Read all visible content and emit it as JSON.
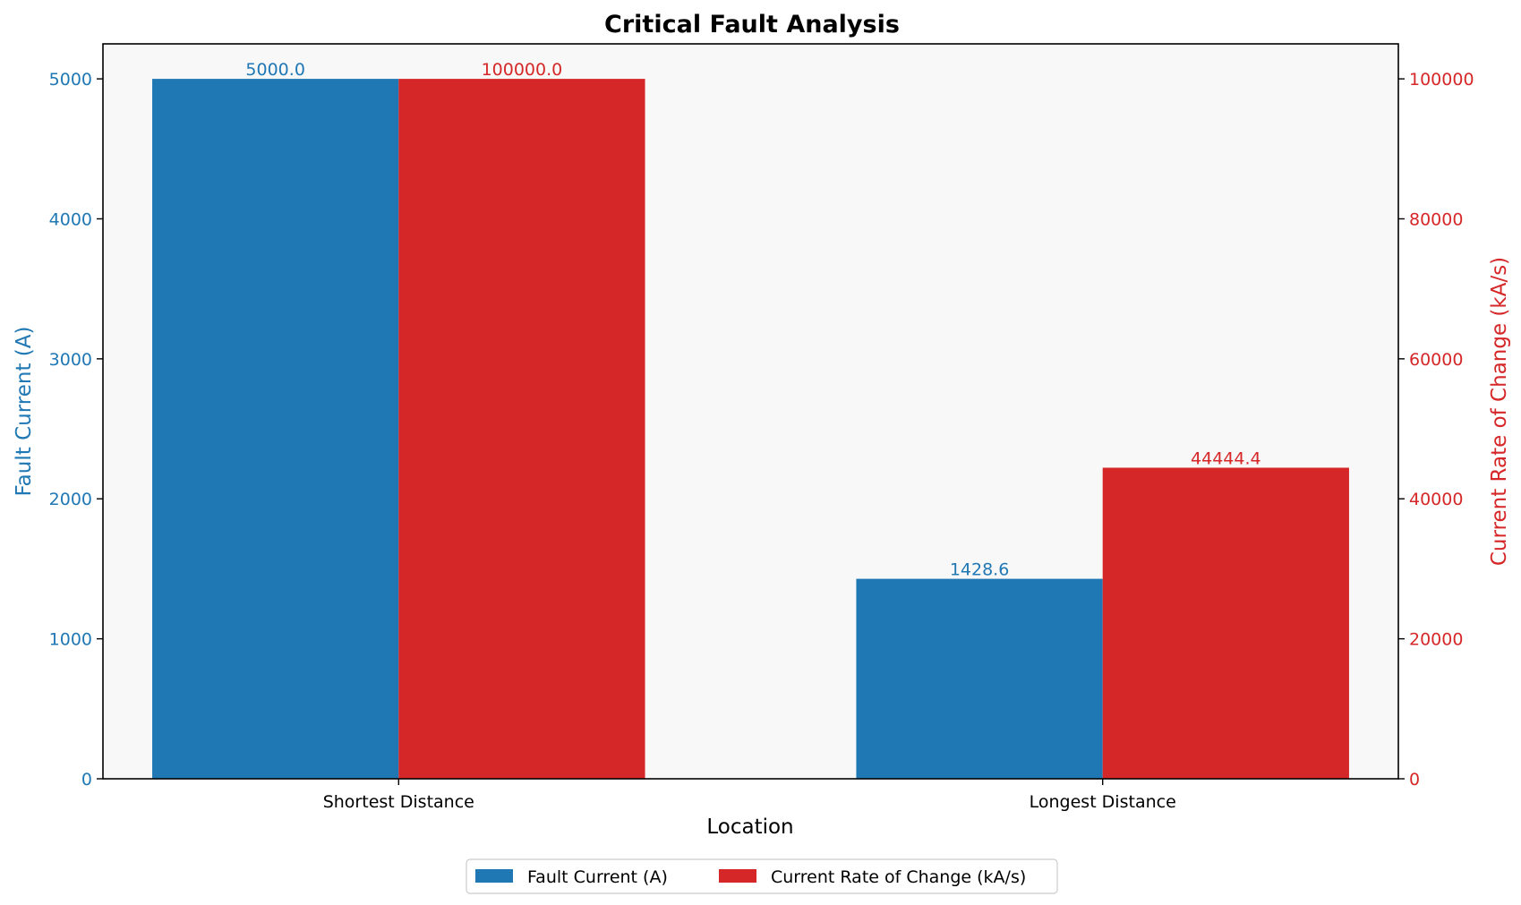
{
  "chart_data": {
    "type": "bar",
    "title": "Critical Fault Analysis",
    "xlabel": "Location",
    "categories": [
      "Shortest Distance",
      "Longest Distance"
    ],
    "series": [
      {
        "name": "Fault Current (A)",
        "axis": "left",
        "color": "#1f77b4",
        "values": [
          5000.0,
          1428.6
        ],
        "value_labels": [
          "5000.0",
          "1428.6"
        ]
      },
      {
        "name": "Current Rate of Change (kA/s)",
        "axis": "right",
        "color": "#d62728",
        "values": [
          100000.0,
          44444.4
        ],
        "value_labels": [
          "100000.0",
          "44444.4"
        ]
      }
    ],
    "y_left": {
      "label": "Fault Current (A)",
      "color": "#1f77b4",
      "ylim": [
        0,
        5250
      ],
      "ticks": [
        0,
        1000,
        2000,
        3000,
        4000,
        5000
      ]
    },
    "y_right": {
      "label": "Current Rate of Change (kA/s)",
      "color": "#d62728",
      "ylim": [
        0,
        105000
      ],
      "ticks": [
        0,
        20000,
        40000,
        60000,
        80000,
        100000
      ]
    },
    "grid": false,
    "legend_position": "bottom-center",
    "plot_background": "#f8f8f8"
  }
}
